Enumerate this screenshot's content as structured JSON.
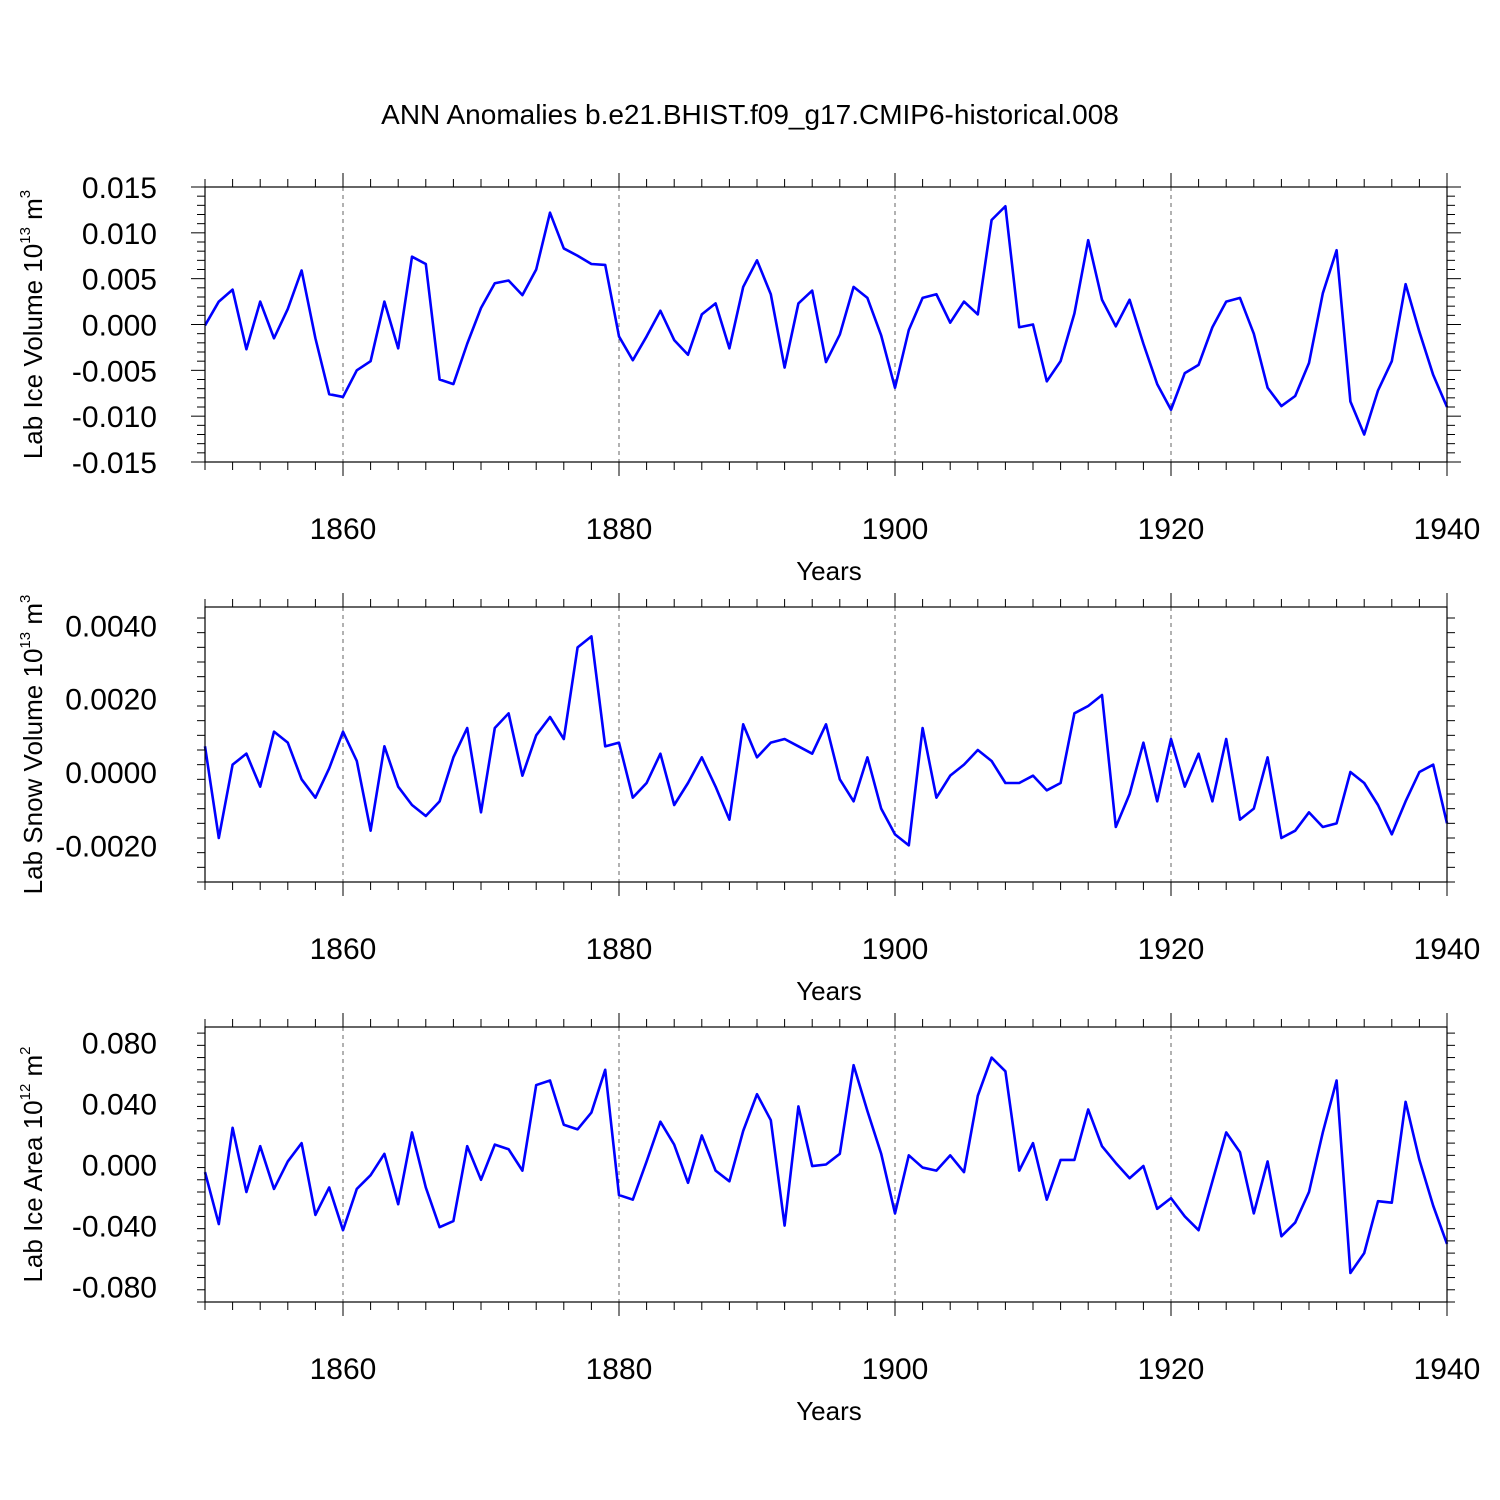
{
  "title": "ANN Anomalies b.e21.BHIST.f09_g17.CMIP6-historical.008",
  "colors": {
    "line": "#0000ff",
    "axes": "#000000",
    "grid": "#000000"
  },
  "chart_data": [
    {
      "type": "line",
      "id": "ice-volume",
      "xlabel": "Years",
      "ylabel": {
        "prefix": "Lab Ice Volume 10",
        "exp": "13",
        "unit": " m",
        "unit_exp": "3"
      },
      "xlim": [
        1850,
        1940
      ],
      "ylim": [
        -0.015,
        0.015
      ],
      "xticks": [
        1860,
        1880,
        1900,
        1920,
        1940
      ],
      "xtick_labels": [
        "1860",
        "1880",
        "1900",
        "1920",
        "1940"
      ],
      "yticks": [
        -0.015,
        -0.01,
        -0.005,
        0.0,
        0.005,
        0.01,
        0.015
      ],
      "ytick_labels": [
        "-0.015",
        "-0.010",
        "-0.005",
        "0.000",
        "0.005",
        "0.010",
        "0.015"
      ],
      "x_start": 1850,
      "values": [
        -0.0001,
        0.0025,
        0.0038,
        -0.0027,
        0.0025,
        -0.0015,
        0.0017,
        0.0059,
        -0.0015,
        -0.0076,
        -0.0079,
        -0.005,
        -0.004,
        0.0025,
        -0.0026,
        0.0074,
        0.0066,
        -0.006,
        -0.0065,
        -0.0021,
        0.0018,
        0.0045,
        0.0048,
        0.0032,
        0.006,
        0.0122,
        0.0083,
        0.0075,
        0.0066,
        0.0065,
        -0.0013,
        -0.0039,
        -0.0013,
        0.0015,
        -0.0017,
        -0.0033,
        0.0011,
        0.0023,
        -0.0026,
        0.0041,
        0.007,
        0.0033,
        -0.0047,
        0.0023,
        0.0037,
        -0.0041,
        -0.0011,
        0.0041,
        0.0029,
        -0.0012,
        -0.0069,
        -0.0006,
        0.0029,
        0.0033,
        0.0002,
        0.0025,
        0.0011,
        0.0114,
        0.0129,
        -0.0003,
        0.0,
        -0.0062,
        -0.004,
        0.0012,
        0.0092,
        0.0027,
        -0.0002,
        0.0027,
        -0.0021,
        -0.0065,
        -0.0093,
        -0.0053,
        -0.0044,
        -0.0003,
        0.0025,
        0.0029,
        -0.001,
        -0.0069,
        -0.0089,
        -0.0078,
        -0.0042,
        0.0034,
        0.0081,
        -0.0084,
        -0.012,
        -0.0072,
        -0.004,
        0.0044,
        -0.0008,
        -0.0055,
        -0.009
      ]
    },
    {
      "type": "line",
      "id": "snow-volume",
      "xlabel": "Years",
      "ylabel": {
        "prefix": "Lab Snow Volume 10",
        "exp": "13",
        "unit": " m",
        "unit_exp": "3"
      },
      "xlim": [
        1850,
        1940
      ],
      "ylim": [
        -0.003,
        0.0045
      ],
      "xticks": [
        1860,
        1880,
        1900,
        1920,
        1940
      ],
      "xtick_labels": [
        "1860",
        "1880",
        "1900",
        "1920",
        "1940"
      ],
      "yticks": [
        -0.002,
        0.0,
        0.002,
        0.004
      ],
      "ytick_labels": [
        "-0.0020",
        "0.0000",
        "0.0020",
        "0.0040"
      ],
      "x_start": 1850,
      "values": [
        0.0007,
        -0.0018,
        0.0002,
        0.0005,
        -0.0004,
        0.0011,
        0.0008,
        -0.0002,
        -0.0007,
        0.0001,
        0.0011,
        0.0003,
        -0.0016,
        0.0007,
        -0.0004,
        -0.0009,
        -0.0012,
        -0.0008,
        0.0004,
        0.0012,
        -0.0011,
        0.0012,
        0.0016,
        -0.0001,
        0.001,
        0.0015,
        0.0009,
        0.0034,
        0.0037,
        0.0007,
        0.0008,
        -0.0007,
        -0.0003,
        0.0005,
        -0.0009,
        -0.0003,
        0.0004,
        -0.0004,
        -0.0013,
        0.0013,
        0.0004,
        0.0008,
        0.0009,
        0.0007,
        0.0005,
        0.0013,
        -0.0002,
        -0.0008,
        0.0004,
        -0.001,
        -0.0017,
        -0.002,
        0.0012,
        -0.0007,
        -0.0001,
        0.0002,
        0.0006,
        0.0003,
        -0.0003,
        -0.0003,
        -0.0001,
        -0.0005,
        -0.0003,
        0.0016,
        0.0018,
        0.0021,
        -0.0015,
        -0.0006,
        0.0008,
        -0.0008,
        0.0009,
        -0.0004,
        0.0005,
        -0.0008,
        0.0009,
        -0.0013,
        -0.001,
        0.0004,
        -0.0018,
        -0.0016,
        -0.0011,
        -0.0015,
        -0.0014,
        0.0,
        -0.0003,
        -0.0009,
        -0.0017,
        -0.0008,
        0.0,
        0.0002,
        -0.0014
      ]
    },
    {
      "type": "line",
      "id": "ice-area",
      "xlabel": "Years",
      "ylabel": {
        "prefix": "Lab Ice Area 10",
        "exp": "12",
        "unit": " m",
        "unit_exp": "2"
      },
      "xlim": [
        1850,
        1940
      ],
      "ylim": [
        -0.09,
        0.09
      ],
      "xticks": [
        1860,
        1880,
        1900,
        1920,
        1940
      ],
      "xtick_labels": [
        "1860",
        "1880",
        "1900",
        "1920",
        "1940"
      ],
      "yticks": [
        -0.08,
        -0.04,
        0.0,
        0.04,
        0.08
      ],
      "ytick_labels": [
        "-0.080",
        "-0.040",
        "0.000",
        "0.040",
        "0.080"
      ],
      "x_start": 1850,
      "values": [
        -0.005,
        -0.039,
        0.024,
        -0.018,
        0.012,
        -0.016,
        0.002,
        0.014,
        -0.033,
        -0.015,
        -0.043,
        -0.016,
        -0.007,
        0.007,
        -0.026,
        0.021,
        -0.015,
        -0.041,
        -0.037,
        0.012,
        -0.01,
        0.013,
        0.01,
        -0.004,
        0.052,
        0.055,
        0.026,
        0.023,
        0.034,
        0.062,
        -0.02,
        -0.023,
        0.002,
        0.028,
        0.013,
        -0.012,
        0.019,
        -0.004,
        -0.011,
        0.022,
        0.046,
        0.029,
        -0.04,
        0.038,
        -0.001,
        0.0,
        0.007,
        0.065,
        0.035,
        0.007,
        -0.032,
        0.006,
        -0.002,
        -0.004,
        0.006,
        -0.005,
        0.045,
        0.07,
        0.061,
        -0.004,
        0.014,
        -0.023,
        0.003,
        0.003,
        0.036,
        0.012,
        0.001,
        -0.009,
        -0.001,
        -0.029,
        -0.022,
        -0.034,
        -0.043,
        -0.011,
        0.021,
        0.008,
        -0.032,
        0.002,
        -0.047,
        -0.038,
        -0.018,
        0.021,
        0.055,
        -0.071,
        -0.058,
        -0.024,
        -0.025,
        0.041,
        0.003,
        -0.027,
        -0.052
      ]
    }
  ]
}
